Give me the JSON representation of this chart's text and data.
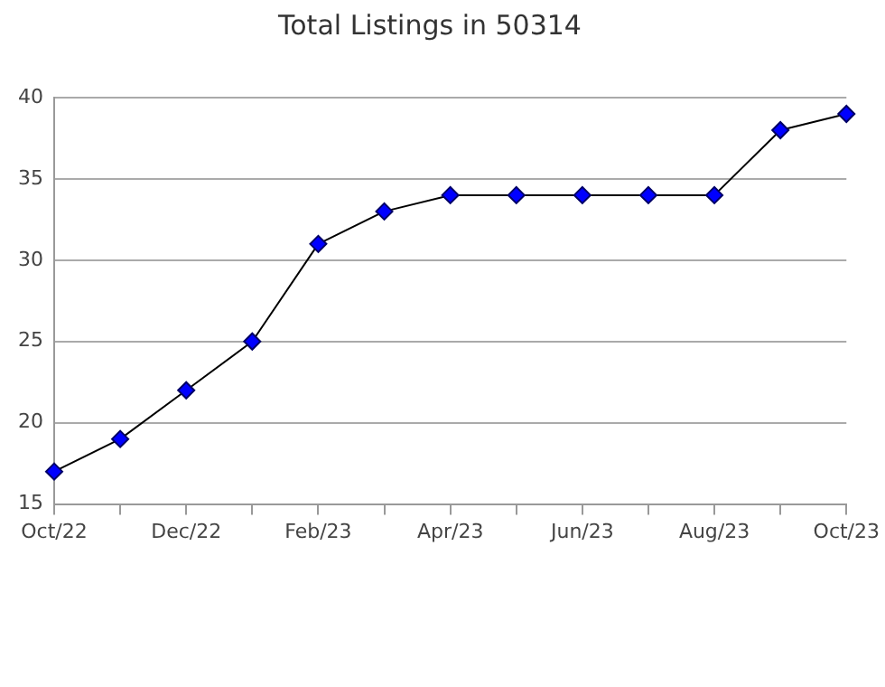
{
  "chart_data": {
    "type": "line",
    "title": "Total Listings in 50314",
    "categories": [
      "Oct/22",
      null,
      "Dec/22",
      null,
      "Feb/23",
      null,
      "Apr/23",
      null,
      "Jun/23",
      null,
      "Aug/23",
      null,
      "Oct/23"
    ],
    "series": [
      {
        "color": "#000000",
        "values": [
          17,
          19,
          22,
          25,
          31,
          33,
          34,
          34,
          34,
          34,
          34,
          38,
          39
        ]
      }
    ],
    "ylim": [
      15,
      40
    ],
    "yticks": [
      15,
      20,
      25,
      30,
      35,
      40
    ],
    "grid": "y",
    "marker": "diamond",
    "line_style": "solid",
    "legend": false
  }
}
